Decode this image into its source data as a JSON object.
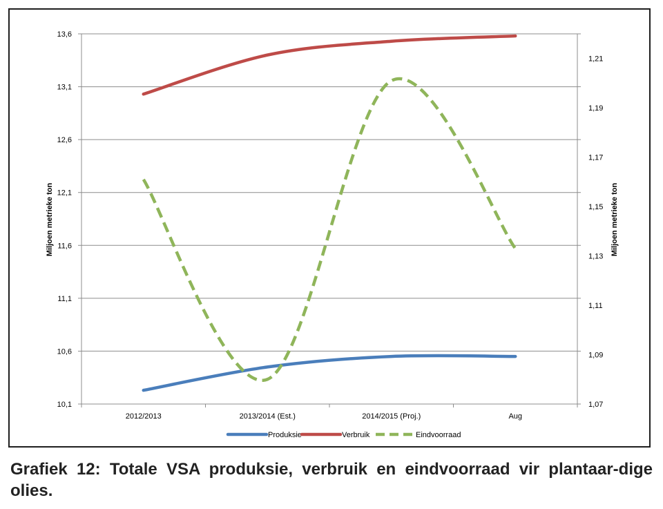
{
  "caption": "Grafiek 12: Totale VSA produksie, verbruik en eindvoorraad vir plantaar-dige olies.",
  "chart_data": {
    "type": "line",
    "categories": [
      "2012/2013",
      "2013/2014 (Est.)",
      "2014/2015 (Proj.)",
      "Aug"
    ],
    "ylabel": "Miljoen metrieke ton",
    "y2label": "Miljoen metrieke ton",
    "ylim": [
      10.1,
      13.6
    ],
    "y2lim": [
      1.07,
      1.22
    ],
    "yticks": [
      "10,1",
      "10,6",
      "11,1",
      "11,6",
      "12,1",
      "12,6",
      "13,1",
      "13,6"
    ],
    "y2ticks": [
      "1,07",
      "1,09",
      "1,11",
      "1,13",
      "1,15",
      "1,17",
      "1,19",
      "1,21"
    ],
    "grid": true,
    "legend_position": "bottom",
    "series": [
      {
        "name": "Produksie",
        "axis": "left",
        "color": "#4a7ebb",
        "dash": false,
        "values": [
          10.23,
          10.45,
          10.55,
          10.55
        ]
      },
      {
        "name": "Verbruik",
        "axis": "left",
        "color": "#be4b48",
        "dash": false,
        "values": [
          13.03,
          13.4,
          13.53,
          13.58
        ]
      },
      {
        "name": "Eindvoorraad",
        "axis": "right",
        "color": "#8fb55a",
        "dash": true,
        "values": [
          1.161,
          1.08,
          1.201,
          1.133
        ]
      }
    ]
  }
}
